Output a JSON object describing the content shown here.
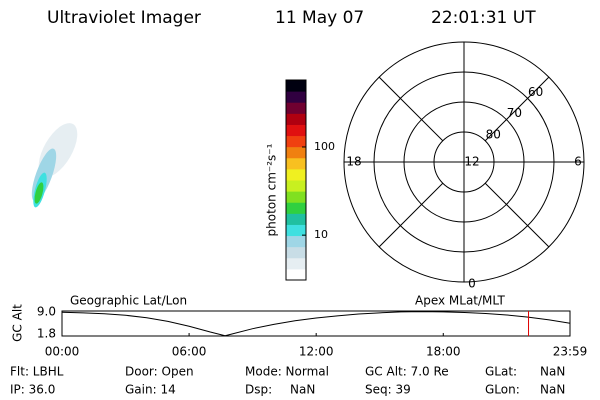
{
  "header": {
    "title": "Ultraviolet Imager",
    "date": "11 May 07",
    "time": "22:01:31 UT"
  },
  "colorbar": {
    "label": "photon cm⁻²s⁻¹",
    "log": true,
    "lim": [
      3.1,
      575
    ],
    "ticks": [
      10,
      100
    ],
    "colors": [
      "#ffffff",
      "#e6eef2",
      "#c8dde6",
      "#9fd6e6",
      "#3fe0e0",
      "#20c0a0",
      "#30d040",
      "#80e020",
      "#c8f020",
      "#f0f020",
      "#f8c020",
      "#f08010",
      "#f04010",
      "#e01010",
      "#b00010",
      "#700030",
      "#300040",
      "#000010"
    ]
  },
  "polar": {
    "rlim": [
      90,
      50
    ],
    "rings": [
      80,
      70,
      60
    ],
    "mlt_ticks": [
      12,
      18,
      6,
      0
    ]
  },
  "chart_data": {
    "type": "line",
    "left_label": "Geographic Lat/Lon",
    "right_label": "Apex MLat/MLT",
    "ylabel": "GC Alt",
    "xlim": [
      0,
      23.983
    ],
    "xticks": [
      {
        "value": 0,
        "label": "00:00"
      },
      {
        "value": 6,
        "label": "06:00"
      },
      {
        "value": 12,
        "label": "12:00"
      },
      {
        "value": 18,
        "label": "18:00"
      },
      {
        "value": 23.983,
        "label": "23:59"
      }
    ],
    "ylim": [
      1.2,
      9.4
    ],
    "yticks": [
      {
        "value": 9,
        "label": "9.0"
      },
      1.8
    ],
    "x": [
      0,
      1,
      2,
      3,
      4,
      5,
      6,
      7,
      7.7,
      8,
      9,
      10,
      11,
      12,
      13,
      14,
      15,
      16,
      17,
      18,
      19,
      20,
      21,
      22,
      23,
      23.983
    ],
    "series": [
      {
        "color": "#000000",
        "values": [
          9.0,
          8.8,
          8.5,
          8.0,
          7.2,
          6.0,
          4.4,
          2.5,
          1.3,
          1.8,
          3.6,
          5.0,
          6.2,
          7.1,
          7.8,
          8.4,
          8.8,
          9.1,
          9.2,
          9.1,
          8.9,
          8.6,
          8.1,
          7.4,
          6.5,
          5.4
        ]
      }
    ],
    "marker_x": 22.025,
    "marker_color": "#e00000"
  },
  "footer": {
    "rows": [
      [
        "Flt: LBHL",
        "Door: Open",
        "Mode: Normal",
        "GC Alt: 7.0 Re",
        "GLat:",
        "NaN"
      ],
      [
        "IP: 36.0",
        "Gain: 14",
        "Dsp:",
        "NaN",
        "Seq: 39",
        "GLon:",
        "NaN"
      ]
    ]
  }
}
